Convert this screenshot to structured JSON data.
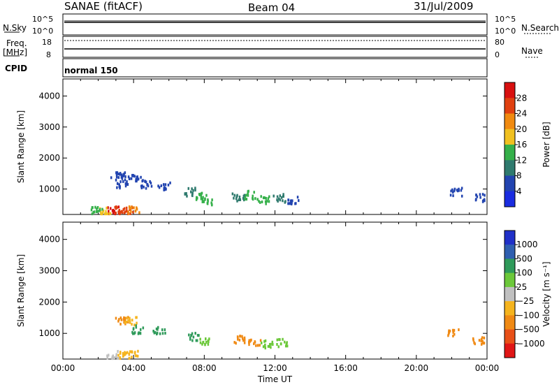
{
  "header": {
    "title": "SANAE (fitACF)",
    "beam": "Beam 04",
    "date": "31/Jul/2009"
  },
  "summary": {
    "nsky_label": "N.Sky",
    "nsky_ticks": [
      "10^5",
      "10^0"
    ],
    "nsearch_label": "N.Search",
    "nsearch_ticks": [
      "10^5",
      "10^0"
    ],
    "freq_label_1": "Freq.",
    "freq_label_2": "[MHz]",
    "freq_ticks": [
      "18",
      "8"
    ],
    "nave_label": "Nave",
    "nave_ticks": [
      "80",
      "0"
    ],
    "cpid_label": "CPID",
    "cpid_value": "normal 150"
  },
  "chart_data": [
    {
      "type": "heatmap",
      "name": "power-panel",
      "ylabel": "Slant Range [km]",
      "xlabel": "",
      "ylim": [
        180,
        4550
      ],
      "yticks": [
        "1000",
        "2000",
        "3000",
        "4000"
      ],
      "ytick_values": [
        1000,
        2000,
        3000,
        4000
      ],
      "xlim_hours": [
        0,
        24
      ],
      "colorbar": {
        "label": "Power [dB]",
        "ticks": [
          "4",
          "8",
          "12",
          "16",
          "20",
          "24",
          "28"
        ],
        "colors": [
          "#1a2ce0",
          "#2244b0",
          "#2f7a6e",
          "#35b04a",
          "#f0c020",
          "#f08a10",
          "#e04010",
          "#d81010"
        ]
      },
      "cells": [
        {
          "t": 2.8,
          "r": 300,
          "v": 28
        },
        {
          "t": 3.2,
          "r": 300,
          "v": 26
        },
        {
          "t": 3.6,
          "r": 300,
          "v": 24
        },
        {
          "t": 4.0,
          "r": 300,
          "v": 22
        },
        {
          "t": 2.4,
          "r": 300,
          "v": 18
        },
        {
          "t": 1.9,
          "r": 300,
          "v": 12
        },
        {
          "t": 3.0,
          "r": 1400,
          "v": 6
        },
        {
          "t": 3.6,
          "r": 1420,
          "v": 5
        },
        {
          "t": 4.2,
          "r": 1380,
          "v": 6
        },
        {
          "t": 3.3,
          "r": 1120,
          "v": 7
        },
        {
          "t": 4.7,
          "r": 1130,
          "v": 6
        },
        {
          "t": 5.7,
          "r": 1100,
          "v": 5
        },
        {
          "t": 7.2,
          "r": 900,
          "v": 9
        },
        {
          "t": 7.8,
          "r": 750,
          "v": 12
        },
        {
          "t": 8.2,
          "r": 600,
          "v": 14
        },
        {
          "t": 9.9,
          "r": 720,
          "v": 10
        },
        {
          "t": 10.6,
          "r": 800,
          "v": 14
        },
        {
          "t": 11.3,
          "r": 650,
          "v": 12
        },
        {
          "t": 12.2,
          "r": 700,
          "v": 9
        },
        {
          "t": 13.0,
          "r": 620,
          "v": 6
        },
        {
          "t": 22.2,
          "r": 900,
          "v": 5
        },
        {
          "t": 23.6,
          "r": 720,
          "v": 6
        }
      ]
    },
    {
      "type": "heatmap",
      "name": "velocity-panel",
      "ylabel": "Slant Range [km]",
      "xlabel": "Time UT",
      "ylim": [
        180,
        4550
      ],
      "yticks": [
        "1000",
        "2000",
        "3000",
        "4000"
      ],
      "ytick_values": [
        1000,
        2000,
        3000,
        4000
      ],
      "xlim_hours": [
        0,
        24
      ],
      "xticks": [
        "00:00",
        "04:00",
        "08:00",
        "12:00",
        "16:00",
        "20:00",
        "00:00"
      ],
      "colorbar": {
        "label": "Velocity [m s⁻¹]",
        "ticks": [
          "1000",
          "500",
          "100",
          "25",
          "−25",
          "−100",
          "−500",
          "−1000"
        ],
        "colors": [
          "#2030c8",
          "#2f5fb0",
          "#2f9a5a",
          "#6cc83a",
          "#c0c0c0",
          "#f5b41e",
          "#f08a14",
          "#e85018",
          "#e01616"
        ]
      },
      "cells": [
        {
          "t": 2.8,
          "r": 300,
          "v": 0
        },
        {
          "t": 3.4,
          "r": 300,
          "v": -60
        },
        {
          "t": 4.0,
          "r": 300,
          "v": -60
        },
        {
          "t": 3.3,
          "r": 1400,
          "v": -200
        },
        {
          "t": 3.8,
          "r": 1380,
          "v": -80
        },
        {
          "t": 4.2,
          "r": 1120,
          "v": 150
        },
        {
          "t": 5.4,
          "r": 1100,
          "v": 120
        },
        {
          "t": 7.3,
          "r": 900,
          "v": 150
        },
        {
          "t": 8.0,
          "r": 700,
          "v": 80
        },
        {
          "t": 10.0,
          "r": 800,
          "v": -150
        },
        {
          "t": 10.8,
          "r": 700,
          "v": -300
        },
        {
          "t": 11.5,
          "r": 650,
          "v": 60
        },
        {
          "t": 12.4,
          "r": 700,
          "v": 40
        },
        {
          "t": 22.0,
          "r": 1000,
          "v": -400
        },
        {
          "t": 23.5,
          "r": 750,
          "v": -150
        }
      ]
    }
  ]
}
